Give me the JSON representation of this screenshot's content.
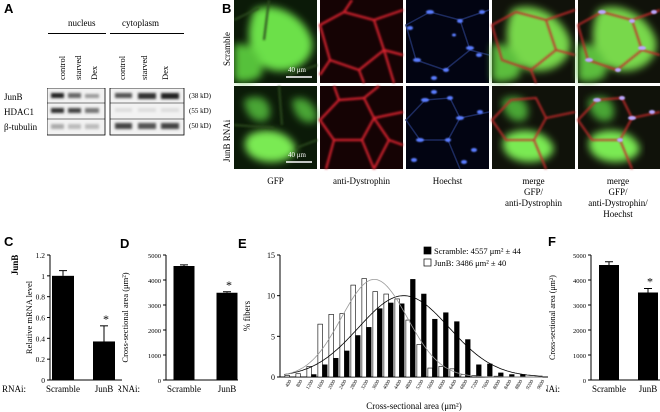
{
  "panel_labels": {
    "A": "A",
    "B": "B",
    "C": "C",
    "D": "D",
    "E": "E",
    "F": "F"
  },
  "panelA": {
    "group_nucleus": "nucleus",
    "group_cytoplasm": "cytoplasm",
    "lane_labels": [
      "control",
      "starved",
      "Dex",
      "control",
      "starved",
      "Dex"
    ],
    "rows": [
      {
        "protein": "JunB",
        "size": "(38 kD)"
      },
      {
        "protein": "HDAC1",
        "size": "(55 kD)"
      },
      {
        "protein": "β-tubulin",
        "size": "(50 kD)"
      }
    ]
  },
  "panelB": {
    "row_labels": [
      "Scramble",
      "JunB RNAi"
    ],
    "scale_bar": "40 μm",
    "column_labels": [
      [
        "GFP"
      ],
      [
        "anti-Dystrophin"
      ],
      [
        "Hoechst"
      ],
      [
        "merge",
        "GFP/",
        "anti-Dystrophin"
      ],
      [
        "merge",
        "GFP/",
        "anti-Dystrophin/",
        "Hoechst"
      ]
    ]
  },
  "rnai_label": "RNAi:",
  "significance": "*",
  "chart_data": [
    {
      "panel": "C",
      "type": "bar",
      "categories": [
        "Scramble",
        "JunB"
      ],
      "values": [
        1.0,
        0.37
      ],
      "errors": [
        0.05,
        0.15
      ],
      "ylabel": "Relative mRNA level",
      "ylabel_group": "JunB",
      "ylim": [
        0,
        1.2
      ],
      "yticks": [
        "0",
        "0.2",
        "0.4",
        "0.6",
        "0.8",
        "1",
        "1.2"
      ],
      "bar_colors": [
        "#000000",
        "#000000"
      ]
    },
    {
      "panel": "D",
      "type": "bar",
      "categories": [
        "Scramble",
        "JunB"
      ],
      "values": [
        4560,
        3490
      ],
      "errors": [
        45,
        40
      ],
      "ylabel": "Cross-sectional area (μm²)",
      "ylim": [
        0,
        5000
      ],
      "yticks": [
        "0",
        "1000",
        "2000",
        "3000",
        "4000",
        "5000"
      ],
      "bar_colors": [
        "#000000",
        "#000000"
      ]
    },
    {
      "panel": "E",
      "type": "bar",
      "x": [
        "400",
        "800",
        "1200",
        "1600",
        "2000",
        "2400",
        "2800",
        "3200",
        "3600",
        "4000",
        "4400",
        "4800",
        "5200",
        "5600",
        "6000",
        "6400",
        "6800",
        "7200",
        "7600",
        "8000",
        "8400",
        "8800",
        "9200",
        "9600"
      ],
      "series": [
        {
          "name": "Scramble: 4557 μm² ± 44",
          "color": "#000000",
          "values": [
            0,
            0,
            0.3,
            1.5,
            2.3,
            3.2,
            5.1,
            6.1,
            8.4,
            9.1,
            9.0,
            12.0,
            10.2,
            7.1,
            7.9,
            6.8,
            4.6,
            1.5,
            1.6,
            0.5,
            0.3,
            0.3,
            0,
            0
          ]
        },
        {
          "name": "JunB: 3486 μm² ± 40",
          "color": "#ffffff",
          "values": [
            0.2,
            0.4,
            1.3,
            6.5,
            7.7,
            7.8,
            11.3,
            12.1,
            10.5,
            10.2,
            9.6,
            7.0,
            4.0,
            1.1,
            1.3,
            1.0,
            0.3,
            0.2,
            0,
            0.1,
            0,
            0,
            0,
            0
          ]
        }
      ],
      "fits": [
        {
          "series": "Scramble",
          "mean": 4557,
          "sd": 1650,
          "peak": 10.0,
          "color": "#000000"
        },
        {
          "series": "JunB",
          "mean": 3486,
          "sd": 1200,
          "peak": 12.0,
          "color": "#999999"
        }
      ],
      "ylabel": "% fibers",
      "xlabel": "Cross-sectional area (μm²)",
      "ylim": [
        0,
        15
      ],
      "yticks": [
        "0",
        "5",
        "10",
        "15"
      ],
      "xticks": [
        "400",
        "800",
        "1200",
        "1600",
        "2000",
        "2400",
        "2800",
        "3200",
        "3600",
        "4000",
        "4400",
        "4800",
        "5200",
        "5600",
        "6000",
        "6400",
        "6800",
        "7200",
        "7600",
        "8000",
        "8400",
        "8800",
        "9200",
        "9600"
      ],
      "legend_position": "top-right"
    },
    {
      "panel": "F",
      "type": "bar",
      "categories": [
        "Scramble",
        "JunB"
      ],
      "values": [
        4600,
        3500
      ],
      "errors": [
        130,
        160
      ],
      "ylabel": "Cross-sectional area (μm²)",
      "ylim": [
        0,
        5000
      ],
      "yticks": [
        "0",
        "1000",
        "2000",
        "3000",
        "4000",
        "5000"
      ],
      "bar_colors": [
        "#000000",
        "#000000"
      ]
    }
  ]
}
